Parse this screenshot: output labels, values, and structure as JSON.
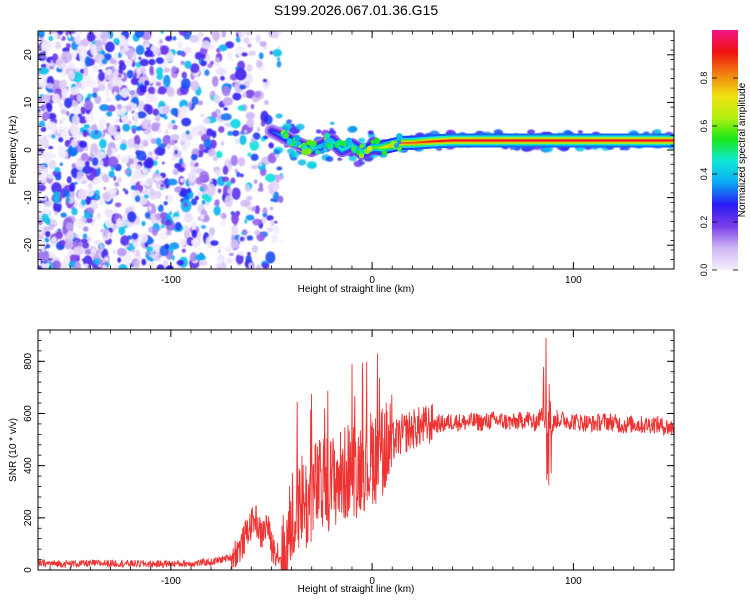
{
  "title": "S199.2026.067.01.36.G15",
  "chart_data": [
    {
      "type": "heatmap",
      "xlabel": "Height of straight line (km)",
      "ylabel": "Frequency (Hz)",
      "xlim": [
        -166,
        150
      ],
      "ylim": [
        -25,
        25
      ],
      "xticks": [
        -100,
        0,
        100
      ],
      "yticks": [
        -20,
        -10,
        0,
        10,
        20
      ],
      "colorbar": {
        "label": "Normalized spectral amplitude",
        "range": [
          0,
          1
        ],
        "ticks": [
          "0.0",
          "0.2",
          "0.4",
          "0.6",
          "0.8"
        ],
        "colors": [
          "#f4eefc",
          "#cfb8f4",
          "#7a3fe8",
          "#2b1bf5",
          "#0aa8f5",
          "#10e8d8",
          "#18e818",
          "#b4f010",
          "#f0e010",
          "#f08010",
          "#f01010",
          "#f01888"
        ]
      },
      "trace": {
        "x": [
          -50,
          -45,
          -40,
          -35,
          -30,
          -25,
          -20,
          -15,
          -10,
          -5,
          0,
          5,
          10,
          15,
          20,
          30,
          40,
          50,
          60,
          70,
          80,
          90,
          100,
          110,
          120,
          130,
          140,
          150
        ],
        "frequency": [
          4,
          3,
          2,
          1,
          0,
          1,
          2,
          0,
          1,
          -0.5,
          0.5,
          0.5,
          1,
          1.5,
          1.5,
          1.8,
          2,
          2,
          2,
          2,
          2,
          2,
          2,
          2,
          2,
          2,
          2,
          2
        ],
        "amplitude": [
          0.3,
          0.35,
          0.4,
          0.4,
          0.42,
          0.42,
          0.45,
          0.45,
          0.48,
          0.5,
          0.55,
          0.65,
          0.8,
          0.85,
          0.85,
          0.9,
          0.92,
          0.92,
          0.93,
          0.92,
          0.93,
          0.92,
          0.93,
          0.92,
          0.92,
          0.92,
          0.93,
          0.92
        ]
      }
    },
    {
      "type": "line",
      "xlabel": "Height of straight line (km)",
      "ylabel": "SNR (10 * v/v)",
      "xlim": [
        -166,
        150
      ],
      "ylim": [
        0,
        920
      ],
      "xticks": [
        -100,
        0,
        100
      ],
      "yticks": [
        0,
        200,
        400,
        600,
        800
      ],
      "color": "#ee3333",
      "series": [
        {
          "x": [
            -166,
            -150,
            -130,
            -110,
            -90,
            -80,
            -70,
            -65,
            -62,
            -58,
            -55,
            -52,
            -50,
            -47,
            -45,
            -43,
            -40,
            -37,
            -35,
            -32,
            -30,
            -27,
            -25,
            -22,
            -20,
            -17,
            -15,
            -12,
            -10,
            -7,
            -5,
            -2,
            0,
            3,
            5,
            8,
            10,
            15,
            20,
            25,
            30,
            35,
            40,
            45,
            50,
            55,
            60,
            65,
            70,
            75,
            78,
            80,
            83,
            85,
            86,
            87,
            88,
            89,
            90,
            92,
            95,
            100,
            105,
            110,
            115,
            120,
            125,
            130,
            135,
            140,
            145,
            150
          ],
          "y": [
            25,
            24,
            26,
            23,
            25,
            30,
            50,
            90,
            150,
            200,
            130,
            180,
            90,
            70,
            40,
            30,
            200,
            260,
            280,
            240,
            300,
            320,
            310,
            340,
            330,
            360,
            350,
            380,
            400,
            380,
            420,
            400,
            440,
            440,
            470,
            460,
            490,
            520,
            540,
            550,
            560,
            560,
            570,
            565,
            570,
            565,
            575,
            570,
            565,
            575,
            580,
            560,
            580,
            600,
            560,
            540,
            600,
            520,
            560,
            580,
            575,
            570,
            565,
            560,
            570,
            565,
            555,
            560,
            555,
            560,
            550,
            545
          ]
        }
      ]
    }
  ]
}
